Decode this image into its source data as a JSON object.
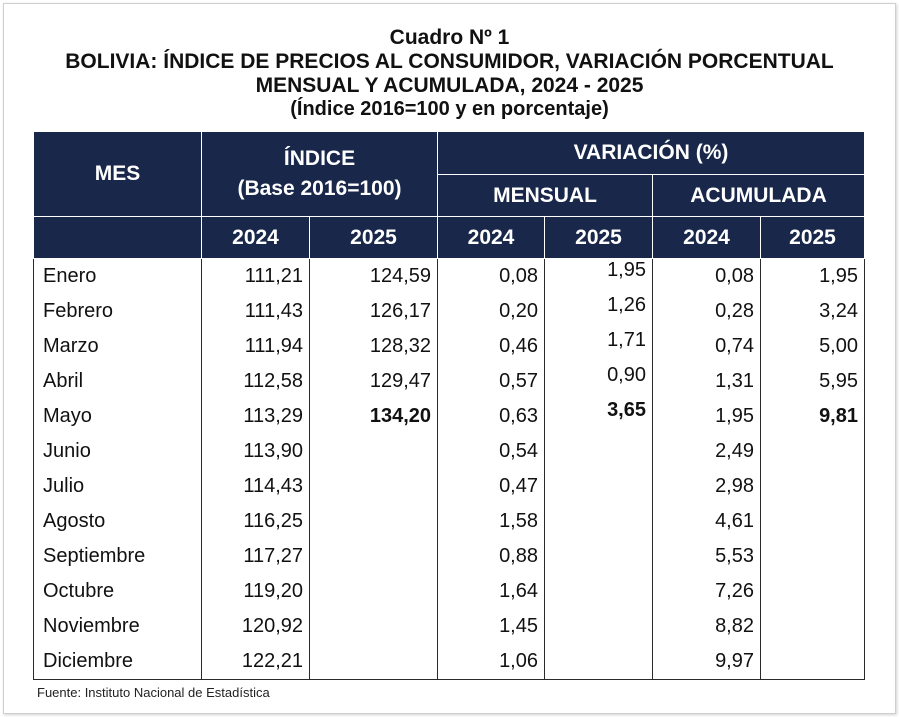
{
  "title": {
    "line1": "Cuadro Nº 1",
    "line2": "BOLIVIA: ÍNDICE DE PRECIOS AL CONSUMIDOR, VARIACIÓN PORCENTUAL",
    "line3": "MENSUAL Y ACUMULADA, 2024 - 2025",
    "line4": "(Índice 2016=100 y en porcentaje)"
  },
  "header": {
    "mes": "MES",
    "indice": "ÍNDICE",
    "base": "(Base 2016=100)",
    "variacion": "VARIACIÓN (%)",
    "mensual": "MENSUAL",
    "acumulada": "ACUMULADA",
    "years": [
      "2024",
      "2025",
      "2024",
      "2025",
      "2024",
      "2025"
    ]
  },
  "rows": [
    {
      "mes": "Enero",
      "idx2024": "111,21",
      "idx2025": "124,59",
      "men2024": "0,08",
      "men2025": "1,95",
      "acu2024": "0,08",
      "acu2025": "1,95"
    },
    {
      "mes": "Febrero",
      "idx2024": "111,43",
      "idx2025": "126,17",
      "men2024": "0,20",
      "men2025": "1,26",
      "acu2024": "0,28",
      "acu2025": "3,24"
    },
    {
      "mes": "Marzo",
      "idx2024": "111,94",
      "idx2025": "128,32",
      "men2024": "0,46",
      "men2025": "1,71",
      "acu2024": "0,74",
      "acu2025": "5,00"
    },
    {
      "mes": "Abril",
      "idx2024": "112,58",
      "idx2025": "129,47",
      "men2024": "0,57",
      "men2025": "0,90",
      "acu2024": "1,31",
      "acu2025": "5,95"
    },
    {
      "mes": "Mayo",
      "idx2024": "113,29",
      "idx2025": "134,20",
      "men2024": "0,63",
      "men2025": "3,65",
      "acu2024": "1,95",
      "acu2025": "9,81"
    },
    {
      "mes": "Junio",
      "idx2024": "113,90",
      "idx2025": "",
      "men2024": "0,54",
      "men2025": "",
      "acu2024": "2,49",
      "acu2025": ""
    },
    {
      "mes": "Julio",
      "idx2024": "114,43",
      "idx2025": "",
      "men2024": "0,47",
      "men2025": "",
      "acu2024": "2,98",
      "acu2025": ""
    },
    {
      "mes": "Agosto",
      "idx2024": "116,25",
      "idx2025": "",
      "men2024": "1,58",
      "men2025": "",
      "acu2024": "4,61",
      "acu2025": ""
    },
    {
      "mes": "Septiembre",
      "idx2024": "117,27",
      "idx2025": "",
      "men2024": "0,88",
      "men2025": "",
      "acu2024": "5,53",
      "acu2025": ""
    },
    {
      "mes": "Octubre",
      "idx2024": "119,20",
      "idx2025": "",
      "men2024": "1,64",
      "men2025": "",
      "acu2024": "7,26",
      "acu2025": ""
    },
    {
      "mes": "Noviembre",
      "idx2024": "120,92",
      "idx2025": "",
      "men2024": "1,45",
      "men2025": "",
      "acu2024": "8,82",
      "acu2025": ""
    },
    {
      "mes": "Diciembre",
      "idx2024": "122,21",
      "idx2025": "",
      "men2024": "1,06",
      "men2025": "",
      "acu2024": "9,97",
      "acu2025": ""
    }
  ],
  "source": "Fuente: Instituto Nacional de Estadística",
  "colors": {
    "header_bg": "#18274a",
    "header_text": "#ffffff"
  }
}
